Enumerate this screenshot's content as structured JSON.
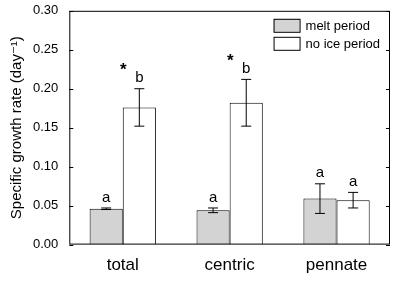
{
  "chart_data": {
    "type": "bar",
    "y_label": "Specific growth rate (day⁻¹)",
    "categories": [
      "total",
      "centric",
      "pennate"
    ],
    "series": [
      {
        "name": "melt period",
        "color": "#d3d3d3",
        "values": [
          0.046,
          0.044,
          0.059
        ],
        "errors": [
          0.001,
          0.003,
          0.019
        ],
        "letters": [
          "a",
          "a",
          "a"
        ]
      },
      {
        "name": "no ice period",
        "color": "#ffffff",
        "values": [
          0.176,
          0.182,
          0.057
        ],
        "errors": [
          0.024,
          0.03,
          0.01
        ],
        "letters": [
          "b",
          "b",
          "a"
        ]
      }
    ],
    "annotations": [
      {
        "text": "*",
        "category": "total",
        "series": "no ice period"
      },
      {
        "text": "*",
        "category": "centric",
        "series": "no ice period"
      }
    ],
    "ylim": [
      0,
      0.3
    ],
    "yticks": [
      {
        "value": 0,
        "label": "0.00"
      },
      {
        "value": 0.05,
        "label": "0.05"
      },
      {
        "value": 0.1,
        "label": "0.10"
      },
      {
        "value": 0.15,
        "label": "0.15"
      },
      {
        "value": 0.2,
        "label": "0.20"
      },
      {
        "value": 0.25,
        "label": "0.25"
      },
      {
        "value": 0.3,
        "label": "0.30"
      }
    ],
    "grid": false,
    "legend": "upper right"
  }
}
